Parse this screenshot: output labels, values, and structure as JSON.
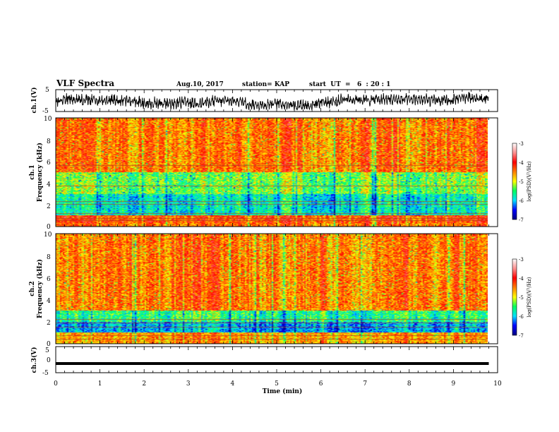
{
  "header": {
    "title": "VLF Spectra",
    "date": "Aug.10, 2017",
    "station": "station= KAP",
    "start_time": "start  UT  =   6  : 20 : 1"
  },
  "chart_data": [
    {
      "type": "line",
      "panel": "ch1-waveform",
      "ylabel": "ch.1(V)",
      "ylim": [
        -5,
        5
      ],
      "yticks": [
        "5",
        "-5"
      ],
      "xlim": [
        0,
        10
      ],
      "grid": false
    },
    {
      "type": "heatmap",
      "panel": "ch1-spectrogram",
      "ylabel": "ch.1\nFrequency  (kHz)",
      "ylim": [
        0,
        10
      ],
      "yticks": [
        "0",
        "2",
        "4",
        "6",
        "8",
        "10"
      ],
      "xlim": [
        0,
        10
      ],
      "colorbar": {
        "label": "log(PSD)(V²/Hz)",
        "range": [
          -7,
          -3
        ],
        "ticks": [
          "-3",
          "-4",
          "-5",
          "-6",
          "-7"
        ]
      },
      "lines_khz": [
        0.5,
        0.75,
        1.2,
        2.0,
        2.3,
        3.7,
        5.6
      ],
      "bands": [
        {
          "from_khz": 0.3,
          "to_khz": 1.0,
          "level": -3.8
        },
        {
          "from_khz": 1.0,
          "to_khz": 3.0,
          "level": -5.6
        },
        {
          "from_khz": 3.0,
          "to_khz": 5.0,
          "level": -5.0
        },
        {
          "from_khz": 5.0,
          "to_khz": 10.0,
          "level": -4.0
        }
      ]
    },
    {
      "type": "heatmap",
      "panel": "ch2-spectrogram",
      "ylabel": "ch.2\nFrequency  (kHz)",
      "ylim": [
        0,
        10
      ],
      "yticks": [
        "0",
        "2",
        "4",
        "6",
        "8",
        "10"
      ],
      "xlim": [
        0,
        10
      ],
      "colorbar": {
        "label": "log(PSD)(V²/Hz)",
        "range": [
          -7,
          -3
        ],
        "ticks": [
          "-3",
          "-4",
          "-5",
          "-6",
          "-7"
        ]
      },
      "lines_khz": [
        0.4,
        0.7,
        1.5,
        1.9,
        2.2
      ],
      "bands": [
        {
          "from_khz": 0.0,
          "to_khz": 1.0,
          "level": -4.2
        },
        {
          "from_khz": 1.0,
          "to_khz": 2.0,
          "level": -5.9
        },
        {
          "from_khz": 2.0,
          "to_khz": 3.0,
          "level": -5.3
        },
        {
          "from_khz": 3.0,
          "to_khz": 10.0,
          "level": -4.0
        }
      ]
    },
    {
      "type": "line",
      "panel": "ch3-waveform",
      "ylabel": "ch.3(V)",
      "ylim": [
        -5,
        5
      ],
      "yticks": [
        "5",
        "0",
        "-5"
      ],
      "xlim": [
        0,
        10
      ],
      "xticks": [
        "0",
        "1",
        "2",
        "3",
        "4",
        "5",
        "6",
        "7",
        "8",
        "9",
        "10"
      ],
      "xlabel": "Time  (min)",
      "data_end_min": 9.8,
      "constant_value": -1.5,
      "grid": false
    }
  ],
  "colors": {
    "colormap": [
      "#000080",
      "#0000ff",
      "#00e0ff",
      "#00ff60",
      "#ffff00",
      "#ff8000",
      "#ff0000",
      "#ff9090",
      "#ffffff"
    ],
    "frame": "#000000",
    "background": "#ffffff"
  }
}
